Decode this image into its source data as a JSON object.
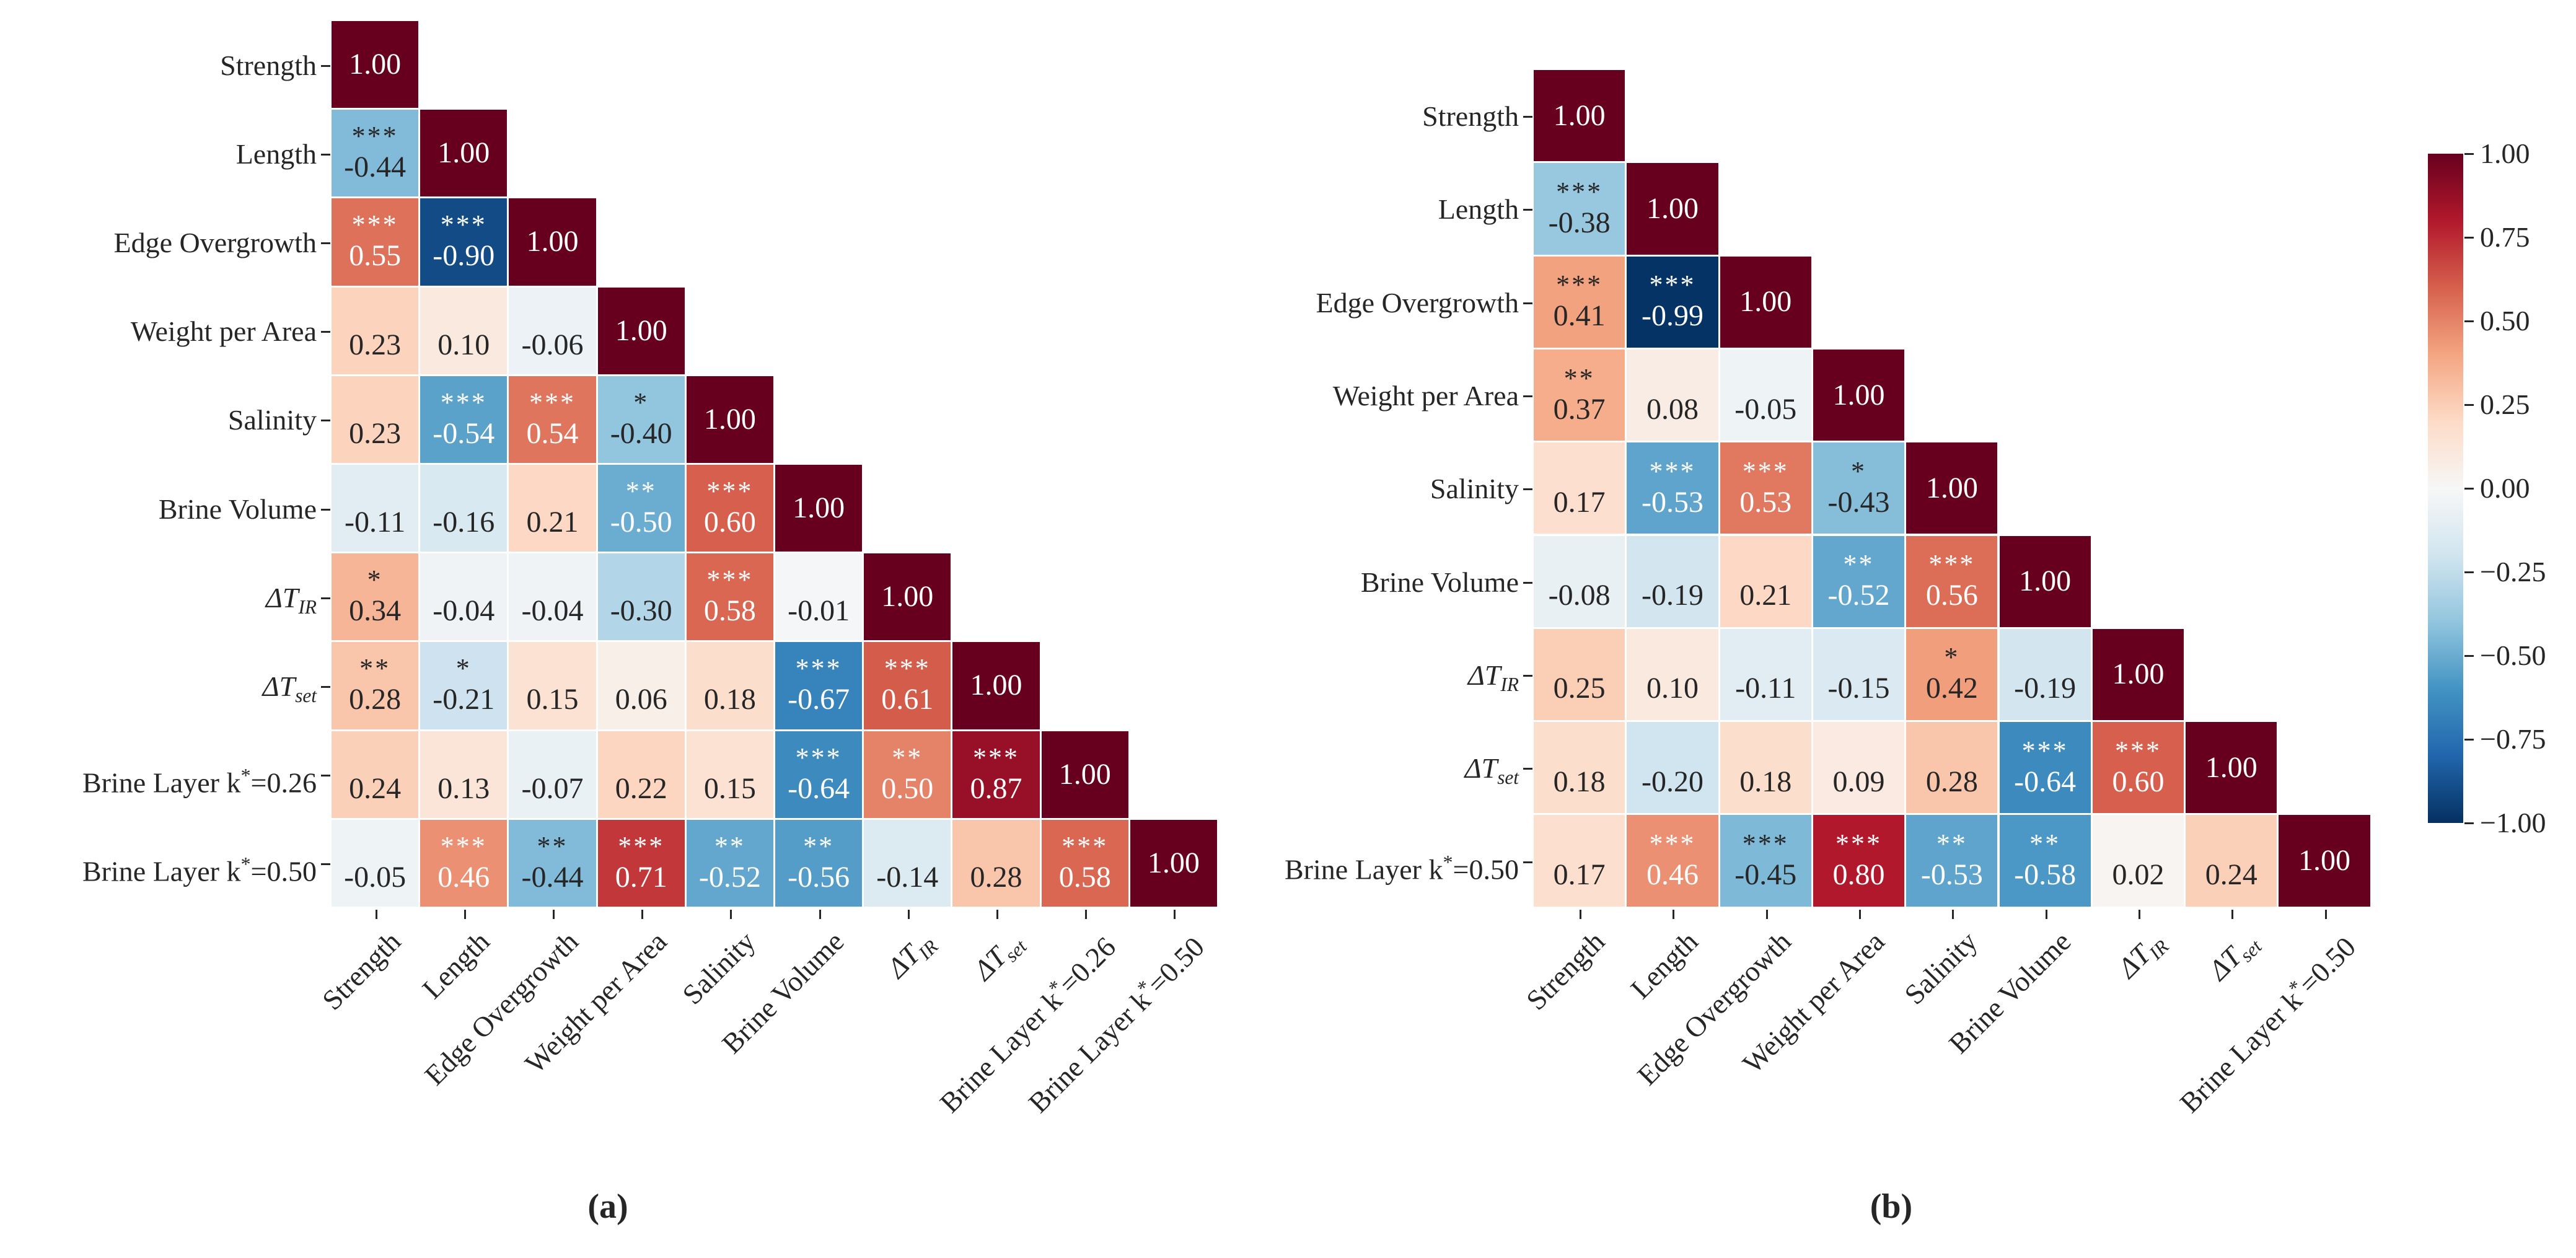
{
  "figure": {
    "captions": {
      "a": "(a)",
      "b": "(b)"
    },
    "background": "#ffffff",
    "text_dark": "#262626",
    "text_light": "#ffffff"
  },
  "colorbar": {
    "vmin": -1.0,
    "vmax": 1.0,
    "tick_labels": [
      "1.00",
      "0.75",
      "0.50",
      "0.25",
      "0.00",
      "−0.25",
      "−0.50",
      "−0.75",
      "−1.00"
    ]
  },
  "colormap": {
    "name": "RdBu_r",
    "anchors_low_to_high": [
      "#053061",
      "#2166ac",
      "#4393c3",
      "#92c5de",
      "#d1e5f0",
      "#f7f7f7",
      "#fddbc7",
      "#f4a582",
      "#d6604d",
      "#b2182b",
      "#67001f"
    ]
  },
  "chart_data": [
    {
      "type": "heatmap",
      "panel": "a",
      "shape": "lower-triangle correlation matrix",
      "variables": [
        "Strength",
        "Length",
        "Edge Overgrowth",
        "Weight per Area",
        "Salinity",
        "Brine Volume",
        "ΔT_IR",
        "ΔT_set",
        "Brine Layer k*=0.26",
        "Brine Layer k*=0.50"
      ],
      "values": [
        [
          1.0
        ],
        [
          -0.44,
          1.0
        ],
        [
          0.55,
          -0.9,
          1.0
        ],
        [
          0.23,
          0.1,
          -0.06,
          1.0
        ],
        [
          0.23,
          -0.54,
          0.54,
          -0.4,
          1.0
        ],
        [
          -0.11,
          -0.16,
          0.21,
          -0.5,
          0.6,
          1.0
        ],
        [
          0.34,
          -0.04,
          -0.04,
          -0.3,
          0.58,
          -0.01,
          1.0
        ],
        [
          0.28,
          -0.21,
          0.15,
          0.06,
          0.18,
          -0.67,
          0.61,
          1.0
        ],
        [
          0.24,
          0.13,
          -0.07,
          0.22,
          0.15,
          -0.64,
          0.5,
          0.87,
          1.0
        ],
        [
          -0.05,
          0.46,
          -0.44,
          0.71,
          -0.52,
          -0.56,
          -0.14,
          0.28,
          0.58,
          1.0
        ]
      ],
      "stars": [
        [
          ""
        ],
        [
          "***",
          ""
        ],
        [
          "***",
          "***",
          ""
        ],
        [
          "",
          "",
          "",
          ""
        ],
        [
          "",
          "***",
          "***",
          "*",
          ""
        ],
        [
          "",
          "",
          "",
          "**",
          "***",
          ""
        ],
        [
          "*",
          "",
          "",
          "",
          "***",
          "",
          ""
        ],
        [
          "**",
          "*",
          "",
          "",
          "",
          "***",
          "***",
          ""
        ],
        [
          "",
          "",
          "",
          "",
          "",
          "***",
          "**",
          "***",
          ""
        ],
        [
          "",
          "***",
          "**",
          "***",
          "**",
          "**",
          "",
          "",
          "***",
          ""
        ]
      ]
    },
    {
      "type": "heatmap",
      "panel": "b",
      "shape": "lower-triangle correlation matrix",
      "variables": [
        "Strength",
        "Length",
        "Edge Overgrowth",
        "Weight per Area",
        "Salinity",
        "Brine Volume",
        "ΔT_IR",
        "ΔT_set",
        "Brine Layer k*=0.50"
      ],
      "values": [
        [
          1.0
        ],
        [
          -0.38,
          1.0
        ],
        [
          0.41,
          -0.99,
          1.0
        ],
        [
          0.37,
          0.08,
          -0.05,
          1.0
        ],
        [
          0.17,
          -0.53,
          0.53,
          -0.43,
          1.0
        ],
        [
          -0.08,
          -0.19,
          0.21,
          -0.52,
          0.56,
          1.0
        ],
        [
          0.25,
          0.1,
          -0.11,
          -0.15,
          0.42,
          -0.19,
          1.0
        ],
        [
          0.18,
          -0.2,
          0.18,
          0.09,
          0.28,
          -0.64,
          0.6,
          1.0
        ],
        [
          0.17,
          0.46,
          -0.45,
          0.8,
          -0.53,
          -0.58,
          0.02,
          0.24,
          1.0
        ]
      ],
      "stars": [
        [
          ""
        ],
        [
          "***",
          ""
        ],
        [
          "***",
          "***",
          ""
        ],
        [
          "**",
          "",
          "",
          ""
        ],
        [
          "",
          "***",
          "***",
          "*",
          ""
        ],
        [
          "",
          "",
          "",
          "**",
          "***",
          ""
        ],
        [
          "",
          "",
          "",
          "",
          "*",
          "",
          ""
        ],
        [
          "",
          "",
          "",
          "",
          "",
          "***",
          "***",
          ""
        ],
        [
          "",
          "***",
          "***",
          "***",
          "**",
          "**",
          "",
          "",
          ""
        ]
      ]
    }
  ]
}
